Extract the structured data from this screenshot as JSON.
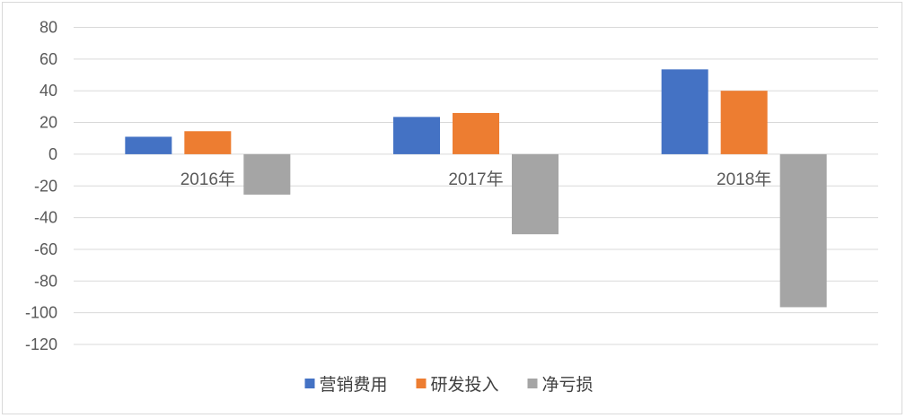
{
  "chart_data": {
    "type": "bar",
    "categories": [
      "2016年",
      "2017年",
      "2018年"
    ],
    "series": [
      {
        "name": "营销费用",
        "values": [
          11,
          23.5,
          53.5
        ],
        "color": "#4472c4"
      },
      {
        "name": "研发投入",
        "values": [
          14.5,
          26,
          40
        ],
        "color": "#ed7d31"
      },
      {
        "name": "净亏损",
        "values": [
          -25.5,
          -50.5,
          -96.5
        ],
        "color": "#a5a5a5"
      }
    ],
    "ylim": [
      -120,
      80
    ],
    "yticks": [
      80,
      60,
      40,
      20,
      0,
      -20,
      -40,
      -60,
      -80,
      -100,
      -120
    ],
    "ytick_labels": [
      "80",
      "60",
      "40",
      "20",
      "0",
      "-20",
      "-40",
      "-60",
      "-80",
      "-100",
      "-120"
    ],
    "grid": true,
    "legend_position": "bottom",
    "title": "",
    "xlabel": "",
    "ylabel": ""
  }
}
